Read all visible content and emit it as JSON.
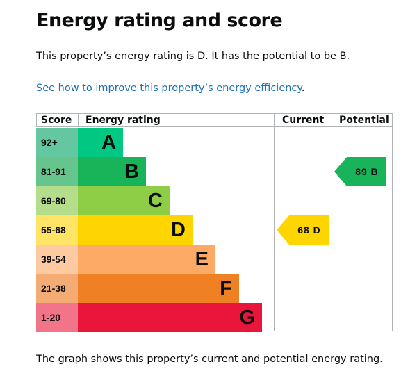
{
  "page": {
    "title": "Energy rating and score",
    "summary": "This property’s energy rating is D. It has the potential to be B.",
    "improve_link": "See how to improve this property’s energy efficiency",
    "improve_link_suffix": ".",
    "footer": "The graph shows this property’s current and potential energy rating."
  },
  "chart": {
    "headers": {
      "score": "Score",
      "rating": "Energy rating",
      "current": "Current",
      "potential": "Potential"
    },
    "bands": [
      {
        "score": "92+",
        "letter": "A",
        "color": "#00c781",
        "score_bg": "#64c7a2"
      },
      {
        "score": "81-91",
        "letter": "B",
        "color": "#19b459",
        "score_bg": "#66c58c"
      },
      {
        "score": "69-80",
        "letter": "C",
        "color": "#8dce46",
        "score_bg": "#b4dd8c"
      },
      {
        "score": "55-68",
        "letter": "D",
        "color": "#ffd500",
        "score_bg": "#ffe466"
      },
      {
        "score": "39-54",
        "letter": "E",
        "color": "#fcaa65",
        "score_bg": "#fdcaa2"
      },
      {
        "score": "21-38",
        "letter": "F",
        "color": "#ef8023",
        "score_bg": "#f4ab74"
      },
      {
        "score": "1-20",
        "letter": "G",
        "color": "#e9153b",
        "score_bg": "#f27489"
      }
    ],
    "current": {
      "score": "68",
      "letter": "D",
      "color": "#ffd500",
      "label": "68 D"
    },
    "potential": {
      "score": "89",
      "letter": "B",
      "color": "#19b459",
      "label": "89 B"
    }
  }
}
